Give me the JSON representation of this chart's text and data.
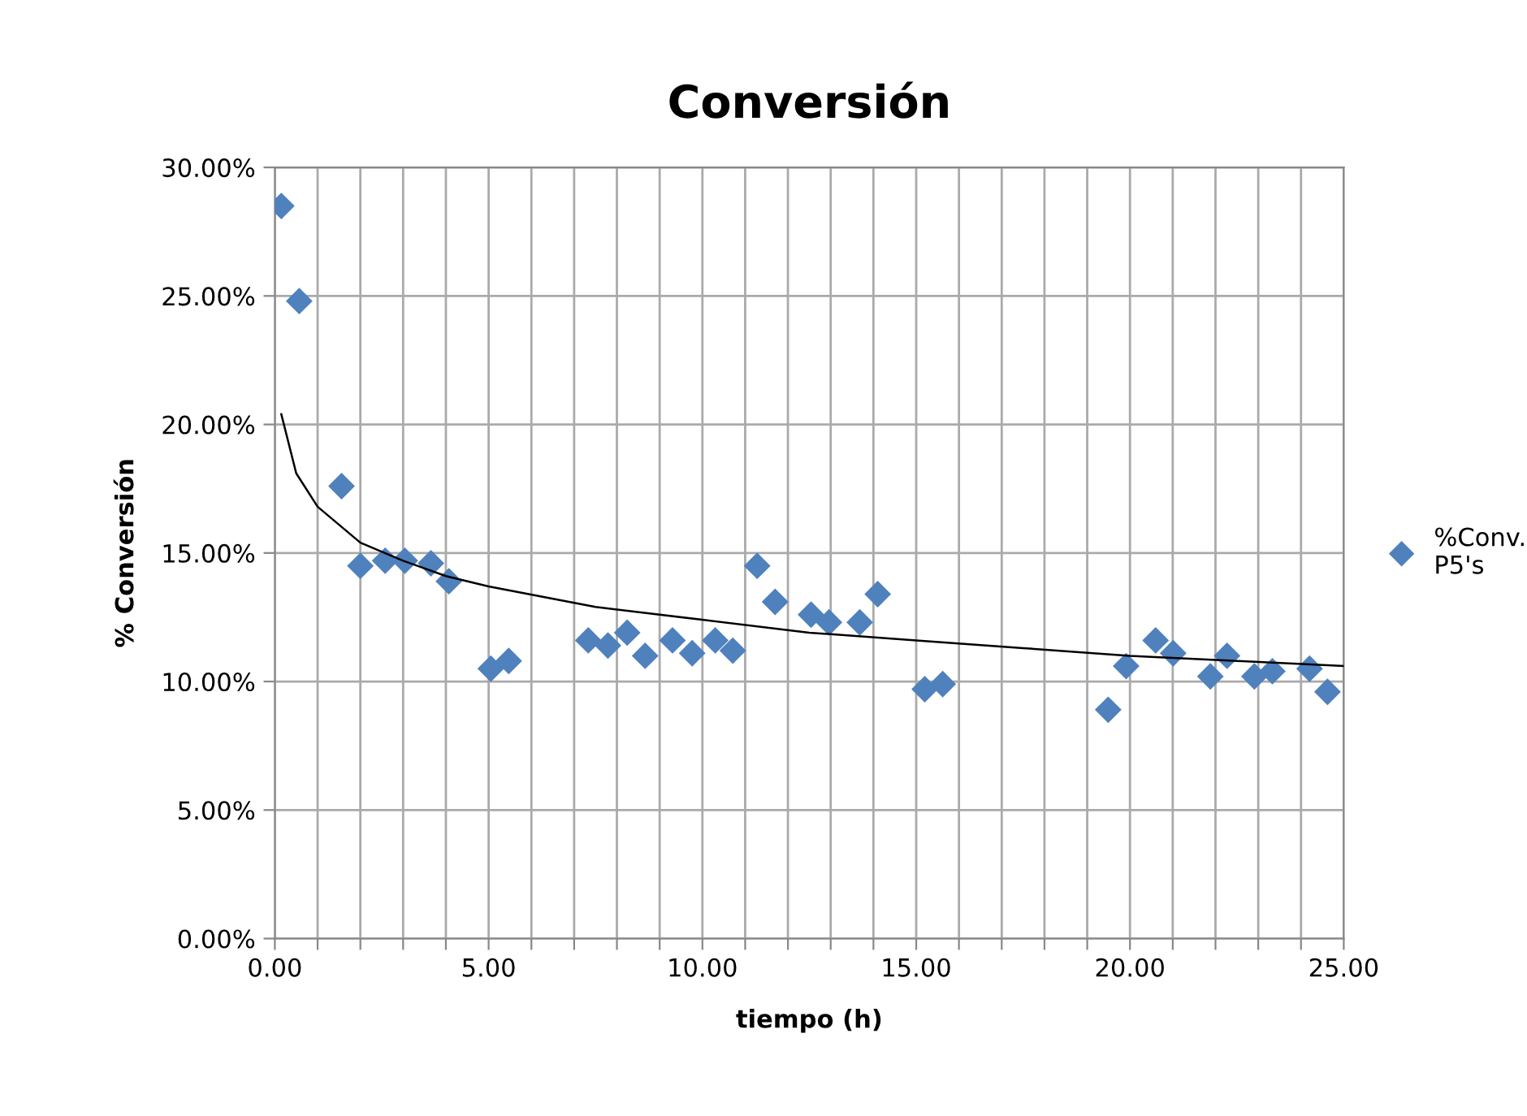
{
  "chart_data": {
    "type": "scatter",
    "title": "Conversión",
    "xlabel": "tiempo (h)",
    "ylabel": "% Conversión",
    "xlim": [
      0,
      25
    ],
    "ylim": [
      0,
      30
    ],
    "xticks": [
      {
        "value": 0,
        "label": "0.00"
      },
      {
        "value": 1,
        "label": null
      },
      {
        "value": 2,
        "label": null
      },
      {
        "value": 3,
        "label": null
      },
      {
        "value": 4,
        "label": null
      },
      {
        "value": 5,
        "label": "5.00"
      },
      {
        "value": 6,
        "label": null
      },
      {
        "value": 7,
        "label": null
      },
      {
        "value": 8,
        "label": null
      },
      {
        "value": 9,
        "label": null
      },
      {
        "value": 10,
        "label": "10.00"
      },
      {
        "value": 11,
        "label": null
      },
      {
        "value": 12,
        "label": null
      },
      {
        "value": 13,
        "label": null
      },
      {
        "value": 14,
        "label": null
      },
      {
        "value": 15,
        "label": "15.00"
      },
      {
        "value": 16,
        "label": null
      },
      {
        "value": 17,
        "label": null
      },
      {
        "value": 18,
        "label": null
      },
      {
        "value": 19,
        "label": null
      },
      {
        "value": 20,
        "label": "20.00"
      },
      {
        "value": 21,
        "label": null
      },
      {
        "value": 22,
        "label": null
      },
      {
        "value": 23,
        "label": null
      },
      {
        "value": 24,
        "label": null
      },
      {
        "value": 25,
        "label": "25.00"
      }
    ],
    "yticks": [
      {
        "value": 0,
        "label": "0.00%"
      },
      {
        "value": 5,
        "label": "5.00%"
      },
      {
        "value": 10,
        "label": "10.00%"
      },
      {
        "value": 15,
        "label": "15.00%"
      },
      {
        "value": 20,
        "label": "20.00%"
      },
      {
        "value": 25,
        "label": "25.00%"
      },
      {
        "value": 30,
        "label": "30.00%"
      }
    ],
    "grid": true,
    "legend": "right",
    "marker": "diamond",
    "series": [
      {
        "name": "%Conv. P5's",
        "color": "#4f81bd",
        "x": [
          0.15,
          0.57,
          1.56,
          2.0,
          2.58,
          3.04,
          3.65,
          4.07,
          5.05,
          5.47,
          7.33,
          7.79,
          8.24,
          8.66,
          9.3,
          9.76,
          10.3,
          10.71,
          11.28,
          11.7,
          12.54,
          12.96,
          13.68,
          14.1,
          15.2,
          15.62,
          19.49,
          19.91,
          20.6,
          21.01,
          21.88,
          22.27,
          22.91,
          23.33,
          24.2,
          24.62
        ],
        "values": [
          28.5,
          24.8,
          17.6,
          14.5,
          14.7,
          14.7,
          14.6,
          13.9,
          10.5,
          10.8,
          11.6,
          11.4,
          11.9,
          11.0,
          11.6,
          11.1,
          11.6,
          11.2,
          14.5,
          13.1,
          12.6,
          12.3,
          12.3,
          13.4,
          9.7,
          9.9,
          8.9,
          10.6,
          11.6,
          11.1,
          10.2,
          11.0,
          10.2,
          10.4,
          10.5,
          9.6
        ]
      },
      {
        "type": "line",
        "color": "#000000",
        "marker": "none",
        "x": [
          0.15,
          0.5,
          1,
          2,
          3,
          4,
          5,
          7.5,
          10,
          12.5,
          15,
          17.5,
          20,
          22.5,
          25
        ],
        "values": [
          20.4,
          18.1,
          16.8,
          15.4,
          14.7,
          14.1,
          13.7,
          12.9,
          12.4,
          11.9,
          11.6,
          11.3,
          11.0,
          10.8,
          10.6
        ]
      }
    ]
  }
}
